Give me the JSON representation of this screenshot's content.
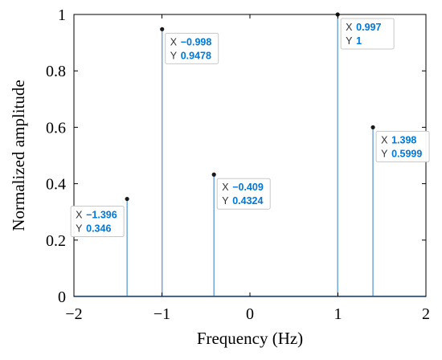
{
  "chart_data": {
    "type": "stem",
    "xlabel": "Frequency (Hz)",
    "ylabel": "Normalized amplitude",
    "xlim": [
      -2,
      2
    ],
    "ylim": [
      0,
      1
    ],
    "xticks": [
      -2,
      -1,
      0,
      1,
      2
    ],
    "xtick_labels": [
      "−2",
      "−1",
      "0",
      "1",
      "2"
    ],
    "yticks": [
      0,
      0.2,
      0.4,
      0.6,
      0.8,
      1
    ],
    "ytick_labels": [
      "0",
      "0.2",
      "0.4",
      "0.6",
      "0.8",
      "1"
    ],
    "grid": false,
    "stem_color": "#5b9bd5",
    "marker_color": "#1a1a1a",
    "points": [
      {
        "x": -1.396,
        "y": 0.346
      },
      {
        "x": -0.998,
        "y": 0.9478
      },
      {
        "x": -0.409,
        "y": 0.4324
      },
      {
        "x": 0.997,
        "y": 1
      },
      {
        "x": 1.398,
        "y": 0.5999
      }
    ],
    "datatips": [
      {
        "x_label": "X",
        "y_label": "Y",
        "x_text": "−1.396",
        "y_text": "0.346"
      },
      {
        "x_label": "X",
        "y_label": "Y",
        "x_text": "−0.998",
        "y_text": "0.9478"
      },
      {
        "x_label": "X",
        "y_label": "Y",
        "x_text": "−0.409",
        "y_text": "0.4324"
      },
      {
        "x_label": "X",
        "y_label": "Y",
        "x_text": "0.997",
        "y_text": "1"
      },
      {
        "x_label": "X",
        "y_label": "Y",
        "x_text": "1.398",
        "y_text": "0.5999"
      }
    ],
    "datatip_value_color": "#0078d7"
  }
}
